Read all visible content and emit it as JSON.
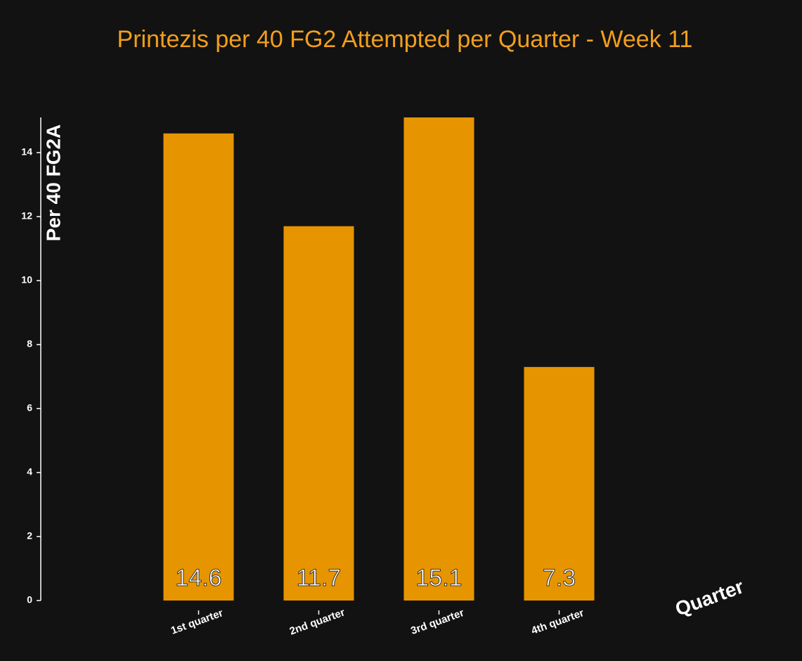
{
  "chart_data": {
    "type": "bar",
    "title": "Printezis per 40 FG2 Attempted per Quarter - Week 11",
    "x_label": "Quarter",
    "y_label": "Per 40 FG2A",
    "categories": [
      "1st quarter",
      "2nd quarter",
      "3rd quarter",
      "4th quarter"
    ],
    "values": [
      14.6,
      11.7,
      15.1,
      7.3
    ],
    "color": "#e69500",
    "ylim": [
      0,
      15.1
    ],
    "yticks": [
      0,
      2,
      4,
      6,
      8,
      10,
      12,
      14
    ]
  }
}
